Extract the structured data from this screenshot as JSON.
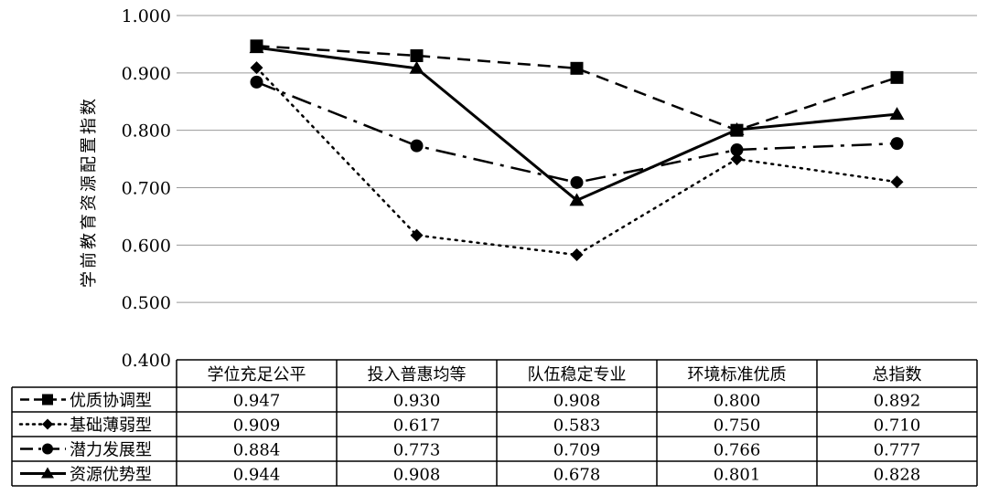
{
  "chart_data": {
    "type": "line",
    "ylabel": "学前教育资源配置指数",
    "ylim": [
      0.4,
      1.0
    ],
    "yticks": [
      "0.400",
      "0.500",
      "0.600",
      "0.700",
      "0.800",
      "0.900",
      "1.000"
    ],
    "grid": true,
    "legend_placement": "table-left",
    "categories": [
      "学位充足公平",
      "投入普惠均等",
      "队伍稳定专业",
      "环境标准优质",
      "总指数"
    ],
    "series": [
      {
        "name": "优质协调型",
        "values": [
          0.947,
          0.93,
          0.908,
          0.8,
          0.892
        ],
        "value_labels": [
          "0.947",
          "0.930",
          "0.908",
          "0.800",
          "0.892"
        ],
        "line_style": "dashed",
        "marker": "square"
      },
      {
        "name": "基础薄弱型",
        "values": [
          0.909,
          0.617,
          0.583,
          0.75,
          0.71
        ],
        "value_labels": [
          "0.909",
          "0.617",
          "0.583",
          "0.750",
          "0.710"
        ],
        "line_style": "dotted",
        "marker": "diamond"
      },
      {
        "name": "潜力发展型",
        "values": [
          0.884,
          0.773,
          0.709,
          0.766,
          0.777
        ],
        "value_labels": [
          "0.884",
          "0.773",
          "0.709",
          "0.766",
          "0.777"
        ],
        "line_style": "dash-dot",
        "marker": "circle"
      },
      {
        "name": "资源优势型",
        "values": [
          0.944,
          0.908,
          0.678,
          0.801,
          0.828
        ],
        "value_labels": [
          "0.944",
          "0.908",
          "0.678",
          "0.801",
          "0.828"
        ],
        "line_style": "solid",
        "marker": "triangle"
      }
    ]
  }
}
